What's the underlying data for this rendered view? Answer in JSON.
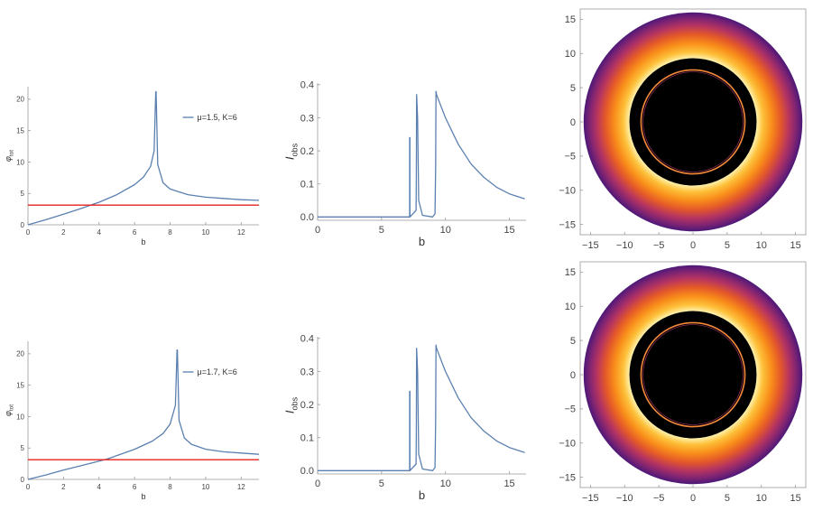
{
  "chart_data": [
    {
      "id": "phi-top",
      "type": "line",
      "xlabel": "b",
      "ylabel": "φ",
      "ylabel_sub": "tot",
      "xlim": [
        0,
        13
      ],
      "ylim": [
        0,
        22
      ],
      "xticks": [
        0,
        2,
        4,
        6,
        8,
        10,
        12
      ],
      "yticks": [
        0,
        5,
        10,
        15,
        20
      ],
      "legend": "top-right",
      "series": [
        {
          "name": "μ=1.5, K=6",
          "color": "#5b80b0",
          "x": [
            0,
            1,
            2,
            3,
            3.5,
            4,
            5,
            6,
            6.5,
            6.9,
            7.1,
            7.19,
            7.21,
            7.3,
            7.6,
            8,
            9,
            10,
            11,
            12,
            13
          ],
          "y": [
            0,
            0.8,
            1.7,
            2.6,
            3.1,
            3.6,
            4.8,
            6.4,
            7.6,
            9.3,
            11.8,
            21.2,
            21.2,
            9.6,
            6.7,
            5.7,
            4.8,
            4.4,
            4.2,
            4.0,
            3.9
          ]
        },
        {
          "name": "",
          "color": "#e8201c",
          "x": [
            0,
            13
          ],
          "y": [
            3.14,
            3.14
          ]
        }
      ]
    },
    {
      "id": "iobs-top",
      "type": "line",
      "xlabel": "b",
      "ylabel": "I",
      "ylabel_sub": "obs",
      "xlim": [
        0,
        16.3
      ],
      "ylim": [
        -0.01,
        0.405
      ],
      "xticks": [
        0,
        5,
        10,
        15
      ],
      "yticks": [
        "0.0",
        "0.1",
        "0.2",
        "0.3",
        "0.4"
      ],
      "series": [
        {
          "name": "",
          "color": "#5b80b0",
          "x": [
            0,
            7.2,
            7.2,
            7.22,
            7.22,
            7.7,
            7.72,
            7.74,
            7.82,
            7.9,
            8.2,
            9.0,
            9.18,
            9.23,
            9.26,
            9.3,
            9.6,
            10,
            11,
            12,
            13,
            14,
            15,
            16.2
          ],
          "y": [
            0,
            0,
            0.24,
            0.24,
            0,
            0.02,
            0.12,
            0.37,
            0.3,
            0.05,
            0.005,
            0,
            0.01,
            0.15,
            0.38,
            0.37,
            0.34,
            0.3,
            0.22,
            0.16,
            0.12,
            0.09,
            0.07,
            0.055
          ]
        }
      ]
    },
    {
      "id": "image-top",
      "type": "heatmap",
      "xlim": [
        -16.5,
        16.5
      ],
      "ylim": [
        -16.5,
        16.5
      ],
      "xticks": [
        -15,
        -10,
        -5,
        0,
        5,
        10,
        15
      ],
      "yticks": [
        15,
        10,
        5,
        0,
        -5,
        -10,
        -15
      ],
      "colors": [
        "#ffffff",
        "#fff0a8",
        "#fdba35",
        "#f98a19",
        "#e3512a",
        "#b63460",
        "#7c2374",
        "#4b1876"
      ],
      "outer_radius": 16,
      "shadow_radius": 9.3,
      "ring_radius": 7.6
    },
    {
      "id": "phi-bottom",
      "type": "line",
      "xlabel": "b",
      "ylabel": "φ",
      "ylabel_sub": "tot",
      "xlim": [
        0,
        13
      ],
      "ylim": [
        0,
        22
      ],
      "xticks": [
        0,
        2,
        4,
        6,
        8,
        10,
        12
      ],
      "yticks": [
        0,
        5,
        10,
        15,
        20
      ],
      "legend": "top-right",
      "series": [
        {
          "name": "μ=1.7, K=6",
          "color": "#5b80b0",
          "x": [
            0,
            1,
            2,
            3,
            4,
            4.5,
            5,
            6,
            7,
            7.6,
            8,
            8.3,
            8.39,
            8.41,
            8.5,
            8.8,
            9.2,
            10,
            11,
            12,
            13
          ],
          "y": [
            0,
            0.7,
            1.5,
            2.2,
            2.9,
            3.3,
            3.8,
            4.8,
            6.1,
            7.3,
            8.8,
            11.8,
            20.6,
            20.6,
            9.4,
            6.6,
            5.6,
            4.8,
            4.4,
            4.2,
            4.0
          ]
        },
        {
          "name": "",
          "color": "#e8201c",
          "x": [
            0,
            13
          ],
          "y": [
            3.14,
            3.14
          ]
        }
      ]
    },
    {
      "id": "iobs-bottom",
      "type": "line",
      "xlabel": "b",
      "ylabel": "I",
      "ylabel_sub": "obs",
      "xlim": [
        0,
        16.3
      ],
      "ylim": [
        -0.01,
        0.405
      ],
      "xticks": [
        0,
        5,
        10,
        15
      ],
      "yticks": [
        "0.0",
        "0.1",
        "0.2",
        "0.3",
        "0.4"
      ],
      "series": [
        {
          "name": "",
          "color": "#5b80b0",
          "x": [
            0,
            7.2,
            7.2,
            7.22,
            7.22,
            7.7,
            7.72,
            7.74,
            7.82,
            7.9,
            8.2,
            9.0,
            9.18,
            9.23,
            9.26,
            9.3,
            9.6,
            10,
            11,
            12,
            13,
            14,
            15,
            16.2
          ],
          "y": [
            0,
            0,
            0.24,
            0.24,
            0,
            0.02,
            0.12,
            0.37,
            0.3,
            0.05,
            0.005,
            0,
            0.01,
            0.15,
            0.38,
            0.37,
            0.34,
            0.3,
            0.22,
            0.16,
            0.12,
            0.09,
            0.07,
            0.055
          ]
        }
      ]
    },
    {
      "id": "image-bottom",
      "type": "heatmap",
      "xlim": [
        -16.5,
        16.5
      ],
      "ylim": [
        -16.5,
        16.5
      ],
      "xticks": [
        -15,
        -10,
        -5,
        0,
        5,
        10,
        15
      ],
      "yticks": [
        15,
        10,
        5,
        0,
        -5,
        -10,
        -15
      ],
      "colors": [
        "#ffffff",
        "#fff0a8",
        "#fdba35",
        "#f98a19",
        "#e3512a",
        "#b63460",
        "#7c2374",
        "#4b1876"
      ],
      "outer_radius": 16,
      "shadow_radius": 9.3,
      "ring_radius": 7.6
    }
  ]
}
